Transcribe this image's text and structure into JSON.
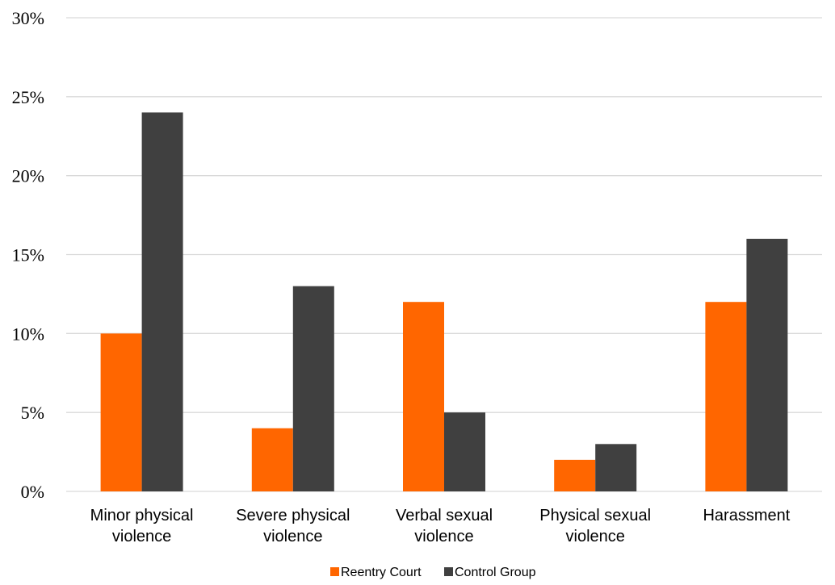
{
  "chart_data": {
    "type": "bar",
    "categories": [
      [
        "Minor physical",
        "violence"
      ],
      [
        "Severe physical",
        "violence"
      ],
      [
        "Verbal sexual",
        "violence"
      ],
      [
        "Physical sexual",
        "violence"
      ],
      [
        "Harassment"
      ]
    ],
    "series": [
      {
        "name": "Reentry Court",
        "color": "#ff6600",
        "values": [
          10,
          4,
          12,
          2,
          12
        ]
      },
      {
        "name": "Control Group",
        "color": "#404040",
        "values": [
          24,
          13,
          5,
          3,
          16
        ]
      }
    ],
    "ylim": [
      0,
      30
    ],
    "yticks": [
      "0%",
      "5%",
      "10%",
      "15%",
      "20%",
      "25%",
      "30%"
    ],
    "ytick_values": [
      0,
      5,
      10,
      15,
      20,
      25,
      30
    ],
    "grid": true,
    "legend_position": "bottom"
  }
}
